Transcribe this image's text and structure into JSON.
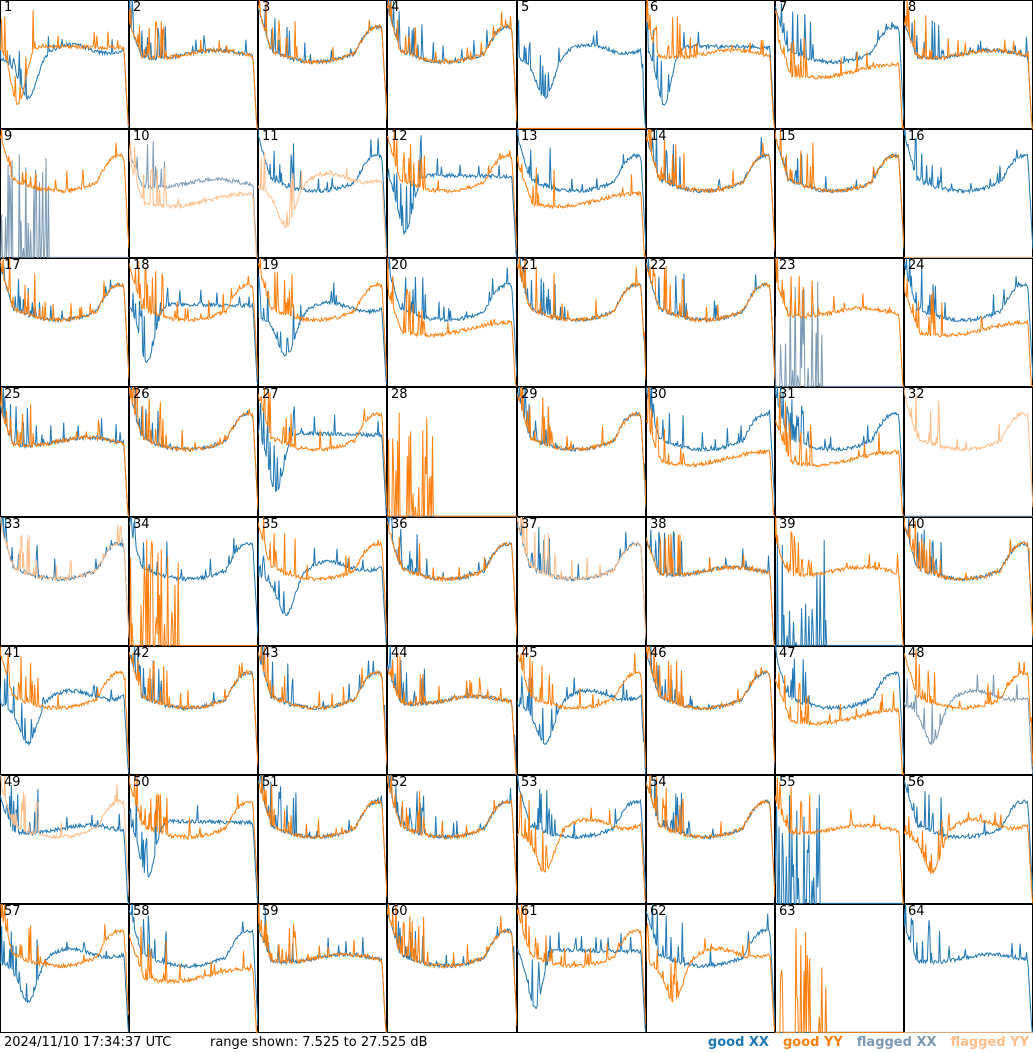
{
  "footer": {
    "timestamp": "2024/11/10 17:34:37 UTC",
    "range_text": "range shown: 7.525 to 27.525 dB"
  },
  "legend": [
    {
      "label": "good XX",
      "color": "#1f77b4"
    },
    {
      "label": "good YY",
      "color": "#ff7f0e"
    },
    {
      "label": "flagged XX",
      "color": "#7b9ab5"
    },
    {
      "label": "flagged YY",
      "color": "#ffbe8a"
    }
  ],
  "chart_data": {
    "type": "line",
    "range_db": [
      7.525,
      27.525
    ],
    "grid_layout": "8x8",
    "tiles": [
      {
        "label": "1",
        "xx": "good",
        "yy": "good",
        "xx_shape": "dip_mid",
        "yy_shape": "dip_left_deep"
      },
      {
        "label": "2",
        "xx": "good",
        "yy": "good",
        "xx_shape": "flat_bumpy",
        "yy_shape": "flat_bumpy"
      },
      {
        "label": "3",
        "xx": "good",
        "yy": "good",
        "xx_shape": "bowl_bumpy",
        "yy_shape": "bowl_bumpy"
      },
      {
        "label": "4",
        "xx": "good",
        "yy": "good",
        "xx_shape": "bowl_bumpy",
        "yy_shape": "bowl_bumpy"
      },
      {
        "label": "5",
        "xx": "good",
        "yy": "good",
        "xx_shape": "dip_mid",
        "yy_shape": "dead"
      },
      {
        "label": "6",
        "xx": "good",
        "yy": "good",
        "xx_shape": "dip_left_deep",
        "yy_shape": "flat_bumpy"
      },
      {
        "label": "7",
        "xx": "good",
        "yy": "good",
        "xx_shape": "bowl_bumpy",
        "yy_shape": "flat_low"
      },
      {
        "label": "8",
        "xx": "good",
        "yy": "good",
        "xx_shape": "flat_bumpy",
        "yy_shape": "flat_bumpy"
      },
      {
        "label": "9",
        "xx": "flagged",
        "yy": "good",
        "xx_shape": "dead_spiky",
        "yy_shape": "bowl_bumpy"
      },
      {
        "label": "10",
        "xx": "flagged",
        "yy": "flagged",
        "xx_shape": "flat_bumpy",
        "yy_shape": "flat_low"
      },
      {
        "label": "11",
        "xx": "good",
        "yy": "flagged",
        "xx_shape": "bowl_bumpy",
        "yy_shape": "dip_mid"
      },
      {
        "label": "12",
        "xx": "good",
        "yy": "good",
        "xx_shape": "dip_left_deep",
        "yy_shape": "bowl_bumpy"
      },
      {
        "label": "13",
        "xx": "good",
        "yy": "good",
        "xx_shape": "bowl_bumpy",
        "yy_shape": "flat_low"
      },
      {
        "label": "14",
        "xx": "good",
        "yy": "good",
        "xx_shape": "bowl_bumpy",
        "yy_shape": "bowl_bumpy"
      },
      {
        "label": "15",
        "xx": "good",
        "yy": "good",
        "xx_shape": "bowl_bumpy",
        "yy_shape": "bowl_bumpy"
      },
      {
        "label": "16",
        "xx": "good",
        "yy": "flagged",
        "xx_shape": "bowl_bumpy",
        "yy_shape": "dead"
      },
      {
        "label": "17",
        "xx": "good",
        "yy": "good",
        "xx_shape": "bowl_bumpy",
        "yy_shape": "bowl_bumpy"
      },
      {
        "label": "18",
        "xx": "good",
        "yy": "good",
        "xx_shape": "dip_left_deep",
        "yy_shape": "bowl_bumpy"
      },
      {
        "label": "19",
        "xx": "good",
        "yy": "good",
        "xx_shape": "dip_mid",
        "yy_shape": "bowl_bumpy"
      },
      {
        "label": "20",
        "xx": "good",
        "yy": "good",
        "xx_shape": "bowl_bumpy",
        "yy_shape": "flat_low"
      },
      {
        "label": "21",
        "xx": "good",
        "yy": "good",
        "xx_shape": "bowl_bumpy",
        "yy_shape": "bowl_bumpy"
      },
      {
        "label": "22",
        "xx": "good",
        "yy": "good",
        "xx_shape": "bowl_bumpy",
        "yy_shape": "bowl_bumpy"
      },
      {
        "label": "23",
        "xx": "flagged",
        "yy": "good",
        "xx_shape": "dead_spiky",
        "yy_shape": "flat_bumpy"
      },
      {
        "label": "24",
        "xx": "good",
        "yy": "good",
        "xx_shape": "bowl_bumpy",
        "yy_shape": "flat_low"
      },
      {
        "label": "25",
        "xx": "good",
        "yy": "good",
        "xx_shape": "flat_bumpy",
        "yy_shape": "flat_bumpy"
      },
      {
        "label": "26",
        "xx": "good",
        "yy": "good",
        "xx_shape": "bowl_bumpy",
        "yy_shape": "bowl_bumpy"
      },
      {
        "label": "27",
        "xx": "good",
        "yy": "good",
        "xx_shape": "dip_left_deep",
        "yy_shape": "bowl_bumpy"
      },
      {
        "label": "28",
        "xx": "good",
        "yy": "good",
        "xx_shape": "dead",
        "yy_shape": "dead_spiky"
      },
      {
        "label": "29",
        "xx": "good",
        "yy": "good",
        "xx_shape": "bowl_bumpy",
        "yy_shape": "bowl_bumpy"
      },
      {
        "label": "30",
        "xx": "good",
        "yy": "good",
        "xx_shape": "bowl_bumpy",
        "yy_shape": "flat_low"
      },
      {
        "label": "31",
        "xx": "good",
        "yy": "good",
        "xx_shape": "bowl_bumpy",
        "yy_shape": "flat_low"
      },
      {
        "label": "32",
        "xx": "flagged",
        "yy": "flagged",
        "xx_shape": "dead",
        "yy_shape": "bowl_bumpy"
      },
      {
        "label": "33",
        "xx": "good",
        "yy": "flagged",
        "xx_shape": "bowl_bumpy",
        "yy_shape": "bowl_bumpy"
      },
      {
        "label": "34",
        "xx": "good",
        "yy": "good",
        "xx_shape": "bowl_bumpy",
        "yy_shape": "dead_spiky"
      },
      {
        "label": "35",
        "xx": "good",
        "yy": "good",
        "xx_shape": "dip_mid",
        "yy_shape": "bowl_bumpy"
      },
      {
        "label": "36",
        "xx": "good",
        "yy": "good",
        "xx_shape": "bowl_bumpy",
        "yy_shape": "bowl_bumpy"
      },
      {
        "label": "37",
        "xx": "good",
        "yy": "flagged",
        "xx_shape": "bowl_bumpy",
        "yy_shape": "bowl_bumpy"
      },
      {
        "label": "38",
        "xx": "good",
        "yy": "good",
        "xx_shape": "flat_bumpy",
        "yy_shape": "flat_bumpy"
      },
      {
        "label": "39",
        "xx": "good",
        "yy": "good",
        "xx_shape": "dead_spiky",
        "yy_shape": "flat_bumpy"
      },
      {
        "label": "40",
        "xx": "good",
        "yy": "good",
        "xx_shape": "bowl_bumpy",
        "yy_shape": "bowl_bumpy"
      },
      {
        "label": "41",
        "xx": "good",
        "yy": "good",
        "xx_shape": "dip_mid",
        "yy_shape": "bowl_bumpy"
      },
      {
        "label": "42",
        "xx": "good",
        "yy": "good",
        "xx_shape": "bowl_bumpy",
        "yy_shape": "bowl_bumpy"
      },
      {
        "label": "43",
        "xx": "good",
        "yy": "good",
        "xx_shape": "bowl_bumpy",
        "yy_shape": "bowl_bumpy"
      },
      {
        "label": "44",
        "xx": "good",
        "yy": "good",
        "xx_shape": "flat_bumpy",
        "yy_shape": "flat_bumpy"
      },
      {
        "label": "45",
        "xx": "good",
        "yy": "good",
        "xx_shape": "dip_mid",
        "yy_shape": "bowl_bumpy"
      },
      {
        "label": "46",
        "xx": "good",
        "yy": "good",
        "xx_shape": "bowl_bumpy",
        "yy_shape": "bowl_bumpy"
      },
      {
        "label": "47",
        "xx": "good",
        "yy": "good",
        "xx_shape": "bowl_bumpy",
        "yy_shape": "flat_low"
      },
      {
        "label": "48",
        "xx": "flagged",
        "yy": "good",
        "xx_shape": "dip_mid",
        "yy_shape": "bowl_bumpy"
      },
      {
        "label": "49",
        "xx": "good",
        "yy": "flagged",
        "xx_shape": "flat_bumpy",
        "yy_shape": "bowl_bumpy"
      },
      {
        "label": "50",
        "xx": "good",
        "yy": "good",
        "xx_shape": "dip_left_deep",
        "yy_shape": "bowl_bumpy"
      },
      {
        "label": "51",
        "xx": "good",
        "yy": "good",
        "xx_shape": "bowl_bumpy",
        "yy_shape": "bowl_bumpy"
      },
      {
        "label": "52",
        "xx": "good",
        "yy": "good",
        "xx_shape": "bowl_bumpy",
        "yy_shape": "bowl_bumpy"
      },
      {
        "label": "53",
        "xx": "good",
        "yy": "good",
        "xx_shape": "bowl_bumpy",
        "yy_shape": "dip_mid"
      },
      {
        "label": "54",
        "xx": "good",
        "yy": "good",
        "xx_shape": "bowl_bumpy",
        "yy_shape": "bowl_bumpy"
      },
      {
        "label": "55",
        "xx": "good",
        "yy": "good",
        "xx_shape": "dead_spiky",
        "yy_shape": "flat_bumpy"
      },
      {
        "label": "56",
        "xx": "good",
        "yy": "good",
        "xx_shape": "bowl_bumpy",
        "yy_shape": "dip_mid"
      },
      {
        "label": "57",
        "xx": "good",
        "yy": "good",
        "xx_shape": "dip_mid",
        "yy_shape": "bowl_bumpy"
      },
      {
        "label": "58",
        "xx": "good",
        "yy": "good",
        "xx_shape": "bowl_bumpy",
        "yy_shape": "flat_low"
      },
      {
        "label": "59",
        "xx": "good",
        "yy": "good",
        "xx_shape": "flat_bumpy",
        "yy_shape": "flat_bumpy"
      },
      {
        "label": "60",
        "xx": "good",
        "yy": "good",
        "xx_shape": "bowl_bumpy",
        "yy_shape": "bowl_bumpy"
      },
      {
        "label": "61",
        "xx": "good",
        "yy": "good",
        "xx_shape": "dip_left_deep",
        "yy_shape": "bowl_bumpy"
      },
      {
        "label": "62",
        "xx": "good",
        "yy": "good",
        "xx_shape": "bowl_bumpy",
        "yy_shape": "dip_mid"
      },
      {
        "label": "63",
        "xx": "good",
        "yy": "good",
        "xx_shape": "dead",
        "yy_shape": "dead_spiky"
      },
      {
        "label": "64",
        "xx": "good",
        "yy": "flagged",
        "xx_shape": "flat_bumpy",
        "yy_shape": "dead"
      }
    ]
  }
}
